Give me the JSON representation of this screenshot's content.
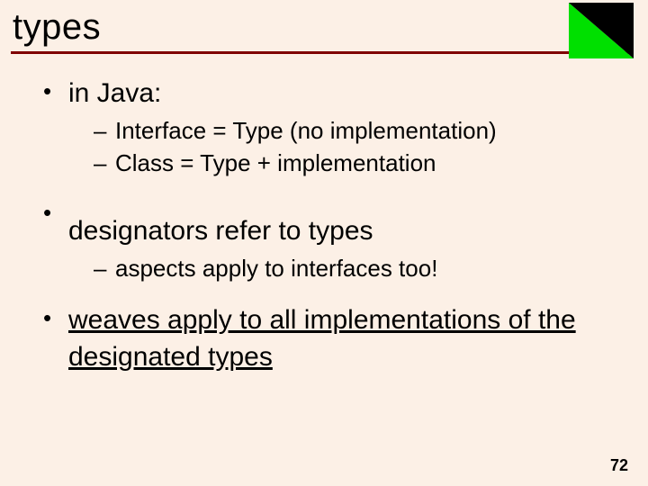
{
  "title": "types",
  "colors": {
    "background": "#fcf0e6",
    "rule": "#800000",
    "corner_black": "#000000",
    "corner_green": "#00e000",
    "text": "#000000"
  },
  "typography": {
    "family": "Comic Sans MS",
    "title_fontsize_pt": 30,
    "level1_fontsize_pt": 22,
    "level2_fontsize_pt": 19,
    "pagenum_family": "Arial",
    "pagenum_fontsize_pt": 13
  },
  "bullets": [
    {
      "text": "in Java:",
      "underlined": false,
      "sub": [
        {
          "text": "Interface = Type (no implementation)"
        },
        {
          "text": "Class = Type + implementation"
        }
      ]
    },
    {
      "text": "designators refer to types",
      "underlined": false,
      "sub": [
        {
          "text": "aspects apply to interfaces too!"
        }
      ]
    },
    {
      "text": "weaves apply to all implementations of the designated types",
      "underlined": true,
      "sub": []
    }
  ],
  "page_number": "72"
}
